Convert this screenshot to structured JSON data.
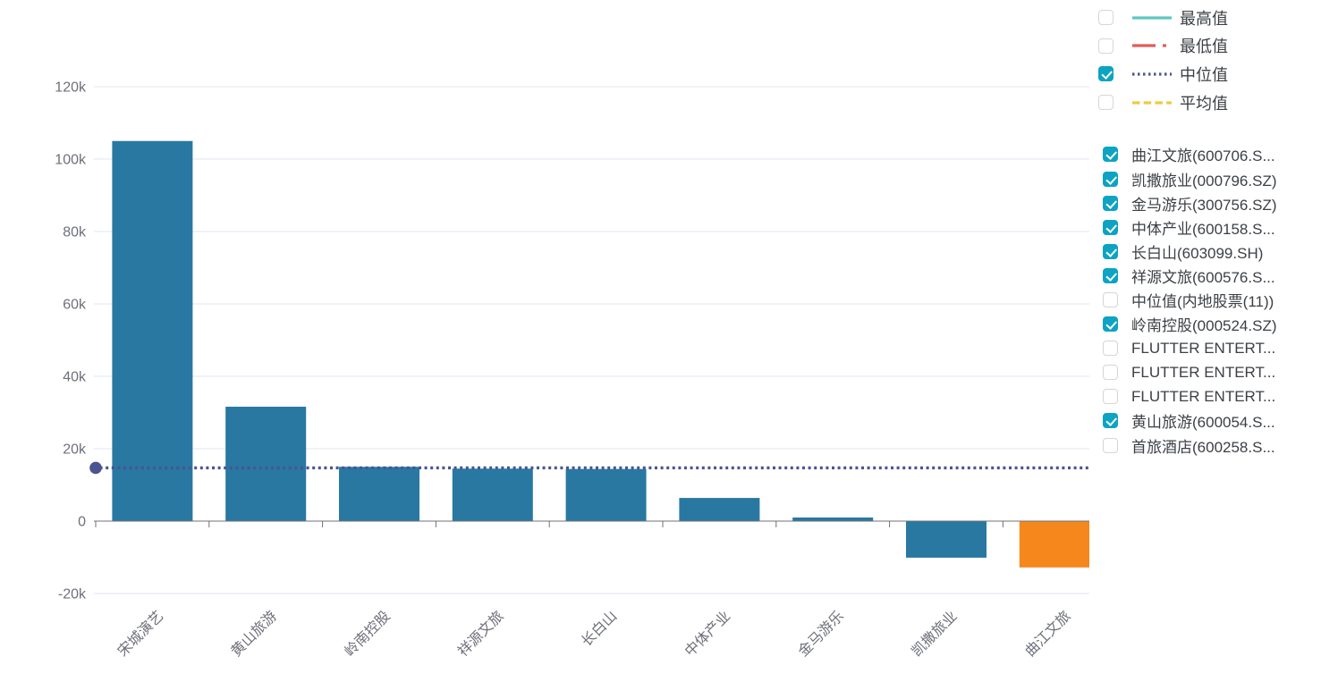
{
  "chart_data": {
    "type": "bar",
    "title": "",
    "xlabel": "",
    "ylabel": "",
    "categories": [
      "宋城演艺",
      "黄山旅游",
      "岭南控股",
      "祥源文旅",
      "长白山",
      "中体产业",
      "金马游乐",
      "凯撒旅业",
      "曲江文旅"
    ],
    "values": [
      105000,
      31600,
      15000,
      14500,
      14400,
      6400,
      1000,
      -10100,
      -12800
    ],
    "bar_colors": [
      "#2878A2",
      "#2878A2",
      "#2878A2",
      "#2878A2",
      "#2878A2",
      "#2878A2",
      "#2878A2",
      "#2878A2",
      "#F5871D"
    ],
    "median_line": {
      "label": "中位值",
      "value": 14700,
      "color": "#4A5490"
    },
    "yticks": [
      {
        "value": 120000,
        "label": "120k"
      },
      {
        "value": 100000,
        "label": "100k"
      },
      {
        "value": 80000,
        "label": "80k"
      },
      {
        "value": 60000,
        "label": "60k"
      },
      {
        "value": 40000,
        "label": "40k"
      },
      {
        "value": 20000,
        "label": "20k"
      },
      {
        "value": 0,
        "label": "0"
      },
      {
        "value": -20000,
        "label": "-20k"
      }
    ],
    "ylim": [
      -20000,
      120000
    ],
    "grid": true,
    "legend_position": "right",
    "x_tick_rotation": -45
  },
  "line_legend": {
    "items": [
      {
        "label": "最高值",
        "checked": false,
        "color": "#5FC6BF",
        "style": "solid"
      },
      {
        "label": "最低值",
        "checked": false,
        "color": "#E25C5C",
        "style": "dashdot"
      },
      {
        "label": "中位值",
        "checked": true,
        "color": "#4A5490",
        "style": "dotted"
      },
      {
        "label": "平均值",
        "checked": false,
        "color": "#EECB3D",
        "style": "dashed"
      }
    ]
  },
  "series_legend": {
    "items": [
      {
        "label": "曲江文旅(600706.S...",
        "checked": true
      },
      {
        "label": "凯撒旅业(000796.SZ)",
        "checked": true
      },
      {
        "label": "金马游乐(300756.SZ)",
        "checked": true
      },
      {
        "label": "中体产业(600158.S...",
        "checked": true
      },
      {
        "label": "长白山(603099.SH)",
        "checked": true
      },
      {
        "label": "祥源文旅(600576.S...",
        "checked": true
      },
      {
        "label": "中位值(内地股票(11))",
        "checked": false
      },
      {
        "label": "岭南控股(000524.SZ)",
        "checked": true
      },
      {
        "label": "FLUTTER ENTERT...",
        "checked": false
      },
      {
        "label": "FLUTTER ENTERT...",
        "checked": false
      },
      {
        "label": "FLUTTER ENTERT...",
        "checked": false
      },
      {
        "label": "黄山旅游(600054.S...",
        "checked": true
      },
      {
        "label": "首旅酒店(600258.S...",
        "checked": false
      }
    ]
  },
  "colors": {
    "bar": "#2878A2",
    "bar_highlight": "#F5871D",
    "median": "#4A5490",
    "grid": "#E0E6F1",
    "axis": "#6E7079",
    "axis_text": "#6E7079",
    "legend_text": "#3C4045",
    "checkbox_on": "#0DA3C3",
    "checkbox_border": "#D6D6D6",
    "background": "#FFFFFF"
  }
}
